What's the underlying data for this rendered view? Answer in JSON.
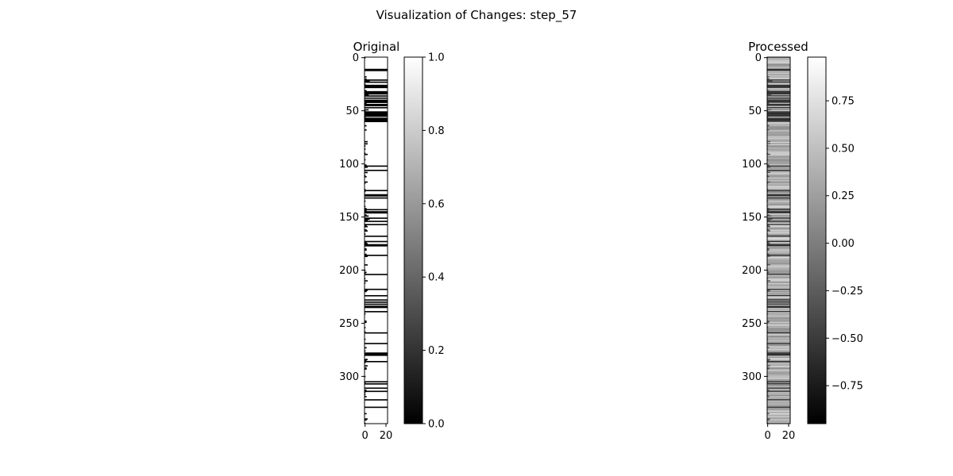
{
  "figure": {
    "title": "Visualization of Changes: step_57"
  },
  "chart_data": [
    {
      "type": "heatmap",
      "title": "Original",
      "rows": 345,
      "cols": 22,
      "x_ticks": [
        0,
        20
      ],
      "y_ticks": [
        0,
        50,
        100,
        150,
        200,
        250,
        300
      ],
      "colormap": "gray",
      "colorbar": {
        "vmin": 0.0,
        "vmax": 1.0,
        "ticks": [
          "0.0",
          "0.2",
          "0.4",
          "0.6",
          "0.8",
          "1.0"
        ]
      },
      "value_set": [
        0,
        1
      ],
      "seed": 57
    },
    {
      "type": "heatmap",
      "title": "Processed",
      "rows": 345,
      "cols": 22,
      "x_ticks": [
        0,
        20
      ],
      "y_ticks": [
        0,
        50,
        100,
        150,
        200,
        250,
        300
      ],
      "colormap": "gray",
      "colorbar": {
        "vmin": -0.95,
        "vmax": 0.98,
        "ticks": [
          "−0.75",
          "−0.50",
          "−0.25",
          "0.00",
          "0.25",
          "0.50",
          "0.75"
        ]
      },
      "seed": 57
    }
  ]
}
